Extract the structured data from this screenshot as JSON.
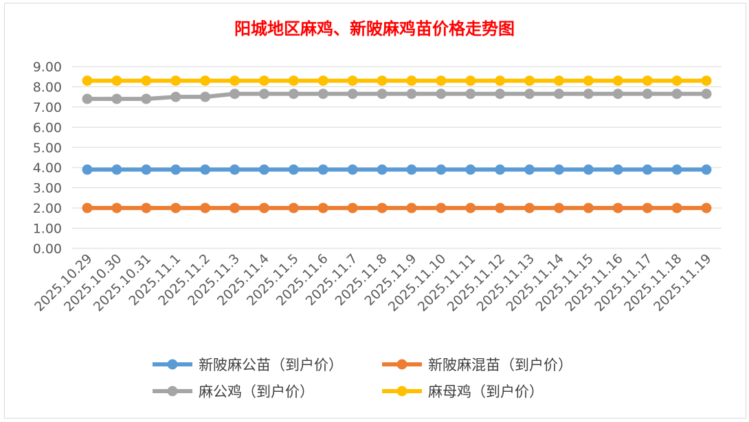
{
  "chart_data": {
    "type": "line",
    "title": "阳城地区麻鸡、新陂麻鸡苗价格走势图",
    "xlabel": "",
    "ylabel": "",
    "ylim": [
      0,
      9
    ],
    "yticks": [
      "0.00",
      "1.00",
      "2.00",
      "3.00",
      "4.00",
      "5.00",
      "6.00",
      "7.00",
      "8.00",
      "9.00"
    ],
    "grid": true,
    "legend_position": "bottom",
    "categories": [
      "2025.10.29",
      "2025.10.30",
      "2025.10.31",
      "2025.11.1",
      "2025.11.2",
      "2025.11.3",
      "2025.11.4",
      "2025.11.5",
      "2025.11.6",
      "2025.11.7",
      "2025.11.8",
      "2025.11.9",
      "2025.11.10",
      "2025.11.11",
      "2025.11.12",
      "2025.11.13",
      "2025.11.14",
      "2025.11.15",
      "2025.11.16",
      "2025.11.17",
      "2025.11.18",
      "2025.11.19"
    ],
    "series": [
      {
        "name": "新陂麻公苗（到户价）",
        "color": "#5b9bd5",
        "values": [
          3.9,
          3.9,
          3.9,
          3.9,
          3.9,
          3.9,
          3.9,
          3.9,
          3.9,
          3.9,
          3.9,
          3.9,
          3.9,
          3.9,
          3.9,
          3.9,
          3.9,
          3.9,
          3.9,
          3.9,
          3.9,
          3.9
        ]
      },
      {
        "name": "新陂麻混苗（到户价）",
        "color": "#ed7d31",
        "values": [
          2.0,
          2.0,
          2.0,
          2.0,
          2.0,
          2.0,
          2.0,
          2.0,
          2.0,
          2.0,
          2.0,
          2.0,
          2.0,
          2.0,
          2.0,
          2.0,
          2.0,
          2.0,
          2.0,
          2.0,
          2.0,
          2.0
        ]
      },
      {
        "name": "麻公鸡（到户价）",
        "color": "#a5a5a5",
        "values": [
          7.4,
          7.4,
          7.4,
          7.5,
          7.5,
          7.65,
          7.65,
          7.65,
          7.65,
          7.65,
          7.65,
          7.65,
          7.65,
          7.65,
          7.65,
          7.65,
          7.65,
          7.65,
          7.65,
          7.65,
          7.65,
          7.65
        ]
      },
      {
        "name": "麻母鸡（到户价）",
        "color": "#ffc000",
        "values": [
          8.3,
          8.3,
          8.3,
          8.3,
          8.3,
          8.3,
          8.3,
          8.3,
          8.3,
          8.3,
          8.3,
          8.3,
          8.3,
          8.3,
          8.3,
          8.3,
          8.3,
          8.3,
          8.3,
          8.3,
          8.3,
          8.3
        ]
      }
    ]
  }
}
